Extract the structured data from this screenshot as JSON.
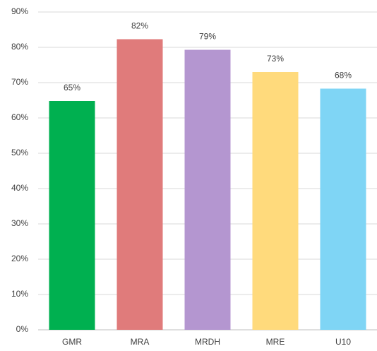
{
  "chart_data": {
    "type": "bar",
    "categories": [
      "GMR",
      "MRA",
      "MRDH",
      "MRE",
      "U10"
    ],
    "values": [
      64.8,
      82.3,
      79.3,
      73,
      68.3
    ],
    "value_labels": [
      "65%",
      "82%",
      "79%",
      "73%",
      "68%"
    ],
    "colors": [
      "#00b050",
      "#e07b7b",
      "#b496d0",
      "#ffda7c",
      "#7fd5f5"
    ],
    "ylim": [
      0,
      90
    ],
    "yticks": [
      {
        "value": 0,
        "label": "0%"
      },
      {
        "value": 10,
        "label": "10%"
      },
      {
        "value": 20,
        "label": "20%"
      },
      {
        "value": 30,
        "label": "30%"
      },
      {
        "value": 40,
        "label": "40%"
      },
      {
        "value": 50,
        "label": "50%"
      },
      {
        "value": 60,
        "label": "60%"
      },
      {
        "value": 70,
        "label": "70%"
      },
      {
        "value": 80,
        "label": "80%"
      },
      {
        "value": 90,
        "label": "90%"
      }
    ],
    "grid": true
  }
}
